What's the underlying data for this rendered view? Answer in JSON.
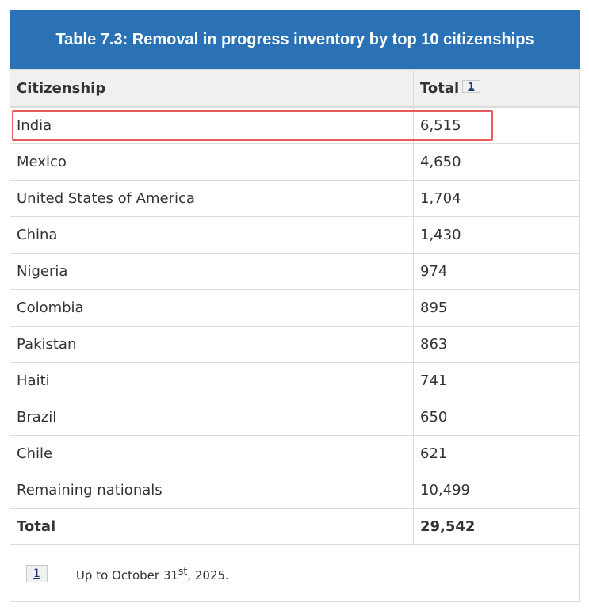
{
  "caption": "Table 7.3: Removal in progress inventory by top 10 citizenships",
  "headers": {
    "citizenship": "Citizenship",
    "total": "Total",
    "footnote_ref": "1"
  },
  "rows": [
    {
      "citizenship": "India",
      "total": "6,515"
    },
    {
      "citizenship": "Mexico",
      "total": "4,650"
    },
    {
      "citizenship": "United States of America",
      "total": "1,704"
    },
    {
      "citizenship": "China",
      "total": "1,430"
    },
    {
      "citizenship": "Nigeria",
      "total": "974"
    },
    {
      "citizenship": "Colombia",
      "total": "895"
    },
    {
      "citizenship": "Pakistan",
      "total": "863"
    },
    {
      "citizenship": "Haiti",
      "total": "741"
    },
    {
      "citizenship": "Brazil",
      "total": "650"
    },
    {
      "citizenship": "Chile",
      "total": "621"
    },
    {
      "citizenship": "Remaining nationals",
      "total": "10,499"
    }
  ],
  "total_row": {
    "label": "Total",
    "value": "29,542"
  },
  "footnote": {
    "ref": "1",
    "text_before": "Up to October 31",
    "sup": "st",
    "text_after": ", 2025."
  },
  "colors": {
    "caption_bg": "#2a72b5",
    "highlight": "#e85a5a"
  }
}
